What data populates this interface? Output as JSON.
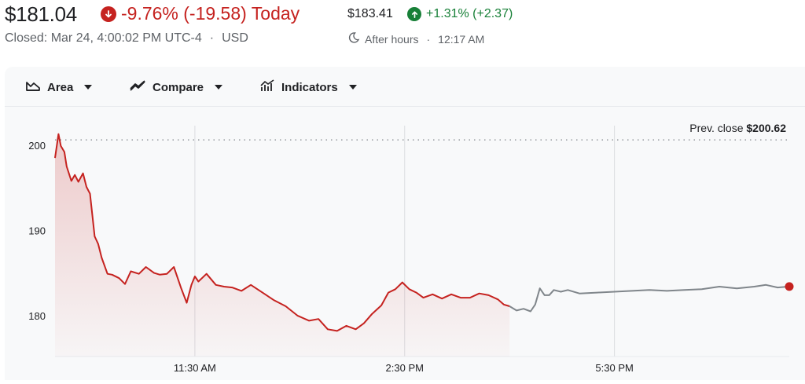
{
  "header": {
    "price": "$181.04",
    "change_today": "-9.76% (-19.58) Today",
    "closed_label": "Closed: Mar 24, 4:00:02 PM UTC-4",
    "currency": "USD",
    "after_hours_price": "$183.41",
    "after_hours_change": "+1.31% (+2.37)",
    "after_hours_label": "After hours",
    "after_hours_time": "12:17 AM",
    "separator": "·"
  },
  "toolbar": {
    "area_label": "Area",
    "compare_label": "Compare",
    "indicators_label": "Indicators"
  },
  "colors": {
    "down": "#c5221f",
    "up": "#188038",
    "after_hours_line": "#80868b",
    "grid": "#dadce0"
  },
  "chart_data": {
    "type": "area",
    "x_ticks": [
      "11:30 AM",
      "2:30 PM",
      "5:30 PM"
    ],
    "y_ticks": [
      180,
      190,
      200
    ],
    "ylim": [
      175.2,
      204.5
    ],
    "xlim": [
      "9:30",
      "20:00"
    ],
    "prev_close_label": "Prev. close",
    "prev_close_value_label": "$200.62",
    "prev_close": 200.62,
    "series": [
      {
        "session": "regular",
        "x": [
          "9:30",
          "9:33",
          "9:35",
          "9:38",
          "9:40",
          "9:44",
          "9:47",
          "9:50",
          "9:54",
          "9:57",
          "10:00",
          "10:04",
          "10:07",
          "10:10",
          "10:15",
          "10:19",
          "10:25",
          "10:30",
          "10:35",
          "10:42",
          "10:48",
          "10:55",
          "11:00",
          "11:06",
          "11:12",
          "11:18",
          "11:23",
          "11:27",
          "11:30",
          "11:33",
          "11:40",
          "11:48",
          "11:55",
          "12:02",
          "12:10",
          "12:18",
          "12:28",
          "12:38",
          "12:48",
          "12:58",
          "13:08",
          "13:16",
          "13:24",
          "13:32",
          "13:40",
          "13:48",
          "13:55",
          "14:02",
          "14:10",
          "14:16",
          "14:22",
          "14:28",
          "14:34",
          "14:40",
          "14:46",
          "14:54",
          "15:02",
          "15:10",
          "15:18",
          "15:26",
          "15:34",
          "15:42",
          "15:50",
          "15:55",
          "16:00"
        ],
        "values": [
          198.5,
          201.3,
          199.9,
          199.2,
          197.5,
          195.8,
          196.5,
          195.7,
          196.7,
          195.1,
          194.3,
          189.3,
          188.4,
          186.8,
          184.9,
          184.8,
          184.4,
          183.7,
          185.2,
          184.9,
          185.7,
          185.0,
          184.8,
          184.9,
          185.7,
          183.3,
          181.5,
          183.6,
          184.6,
          184.0,
          184.9,
          183.6,
          183.4,
          183.3,
          182.9,
          183.6,
          182.7,
          181.8,
          181.1,
          180.0,
          179.4,
          179.6,
          178.4,
          178.2,
          178.8,
          178.4,
          179.1,
          180.2,
          181.2,
          182.7,
          183.1,
          183.9,
          183.1,
          182.7,
          182.1,
          182.5,
          182.0,
          182.5,
          182.1,
          182.1,
          182.6,
          182.4,
          181.9,
          181.3,
          181.1
        ]
      },
      {
        "session": "after_hours",
        "x": [
          "16:00",
          "16:06",
          "16:12",
          "16:18",
          "16:22",
          "16:26",
          "16:30",
          "16:34",
          "16:38",
          "16:44",
          "16:50",
          "17:00",
          "17:15",
          "17:30",
          "17:45",
          "18:00",
          "18:15",
          "18:30",
          "18:45",
          "19:00",
          "19:15",
          "19:30",
          "19:40",
          "19:50",
          "20:00"
        ],
        "values": [
          181.1,
          180.6,
          180.8,
          180.5,
          181.3,
          183.2,
          182.4,
          182.4,
          183.0,
          182.8,
          183.0,
          182.6,
          182.7,
          182.8,
          182.9,
          183.0,
          182.9,
          183.0,
          183.1,
          183.4,
          183.2,
          183.4,
          183.6,
          183.3,
          183.41
        ]
      }
    ],
    "grid": true
  }
}
